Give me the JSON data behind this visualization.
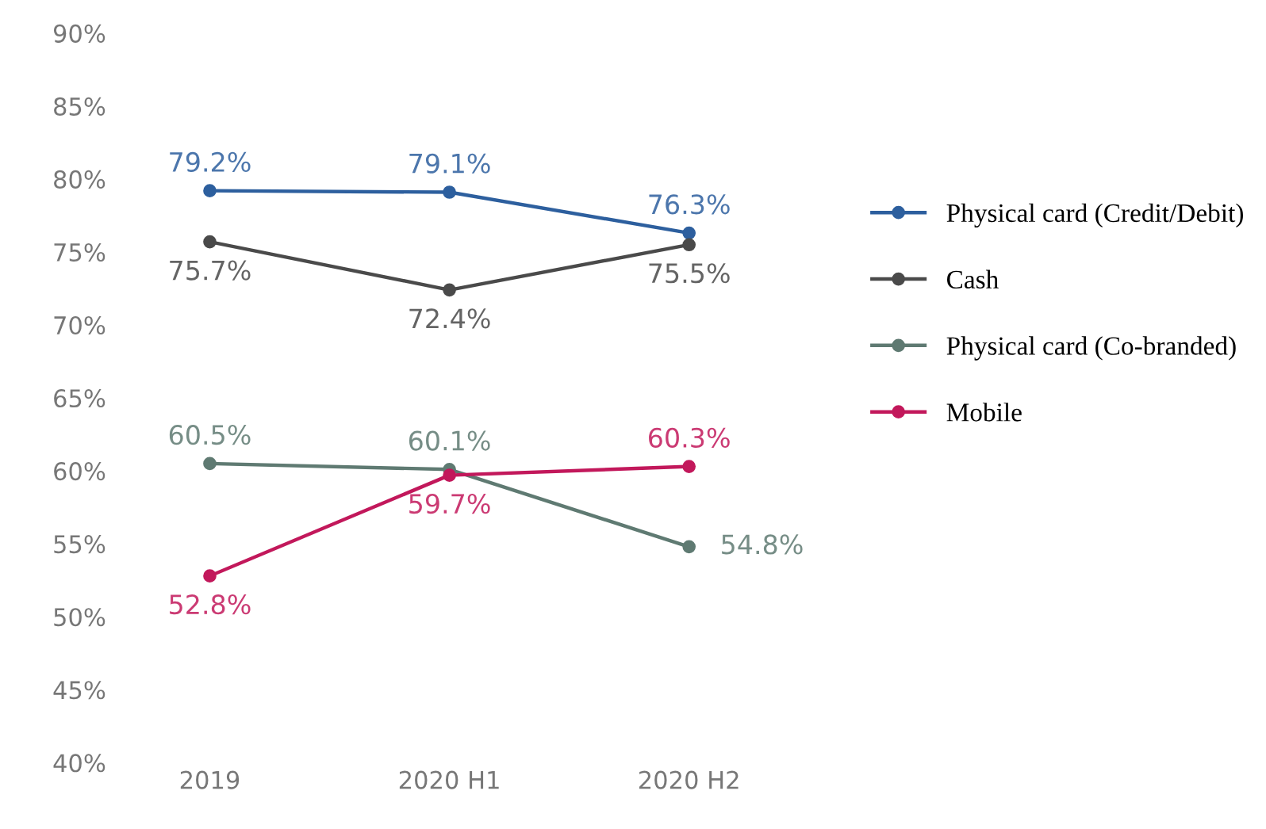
{
  "chart_data": {
    "type": "line",
    "categories": [
      "2019",
      "2020 H1",
      "2020 H2"
    ],
    "series": [
      {
        "name": "Physical card (Credit/Debit)",
        "color": "#2d5f9e",
        "values": [
          79.2,
          79.1,
          76.3
        ],
        "value_labels": [
          "79.2%",
          "79.1%",
          "76.3%"
        ]
      },
      {
        "name": "Cash",
        "color": "#4a4a4a",
        "values": [
          75.7,
          72.4,
          75.5
        ],
        "value_labels": [
          "75.7%",
          "72.4%",
          "75.5%"
        ]
      },
      {
        "name": "Physical card (Co-branded)",
        "color": "#5f7a72",
        "values": [
          60.5,
          60.1,
          54.8
        ],
        "value_labels": [
          "60.5%",
          "60.1%",
          "54.8%"
        ]
      },
      {
        "name": "Mobile",
        "color": "#c2185b",
        "values": [
          52.8,
          59.7,
          60.3
        ],
        "value_labels": [
          "52.8%",
          "59.7%",
          "60.3%"
        ]
      }
    ],
    "ylim": [
      40,
      90
    ],
    "yticks": [
      {
        "value": 40,
        "label": "40%"
      },
      {
        "value": 45,
        "label": "45%"
      },
      {
        "value": 50,
        "label": "50%"
      },
      {
        "value": 55,
        "label": "55%"
      },
      {
        "value": 60,
        "label": "60%"
      },
      {
        "value": 65,
        "label": "65%"
      },
      {
        "value": 70,
        "label": "70%"
      },
      {
        "value": 75,
        "label": "75%"
      },
      {
        "value": 80,
        "label": "80%"
      },
      {
        "value": 85,
        "label": "85%"
      },
      {
        "value": 90,
        "label": "90%"
      }
    ],
    "marker": "circle",
    "line_style": "solid",
    "legend": "right",
    "grid": false
  }
}
